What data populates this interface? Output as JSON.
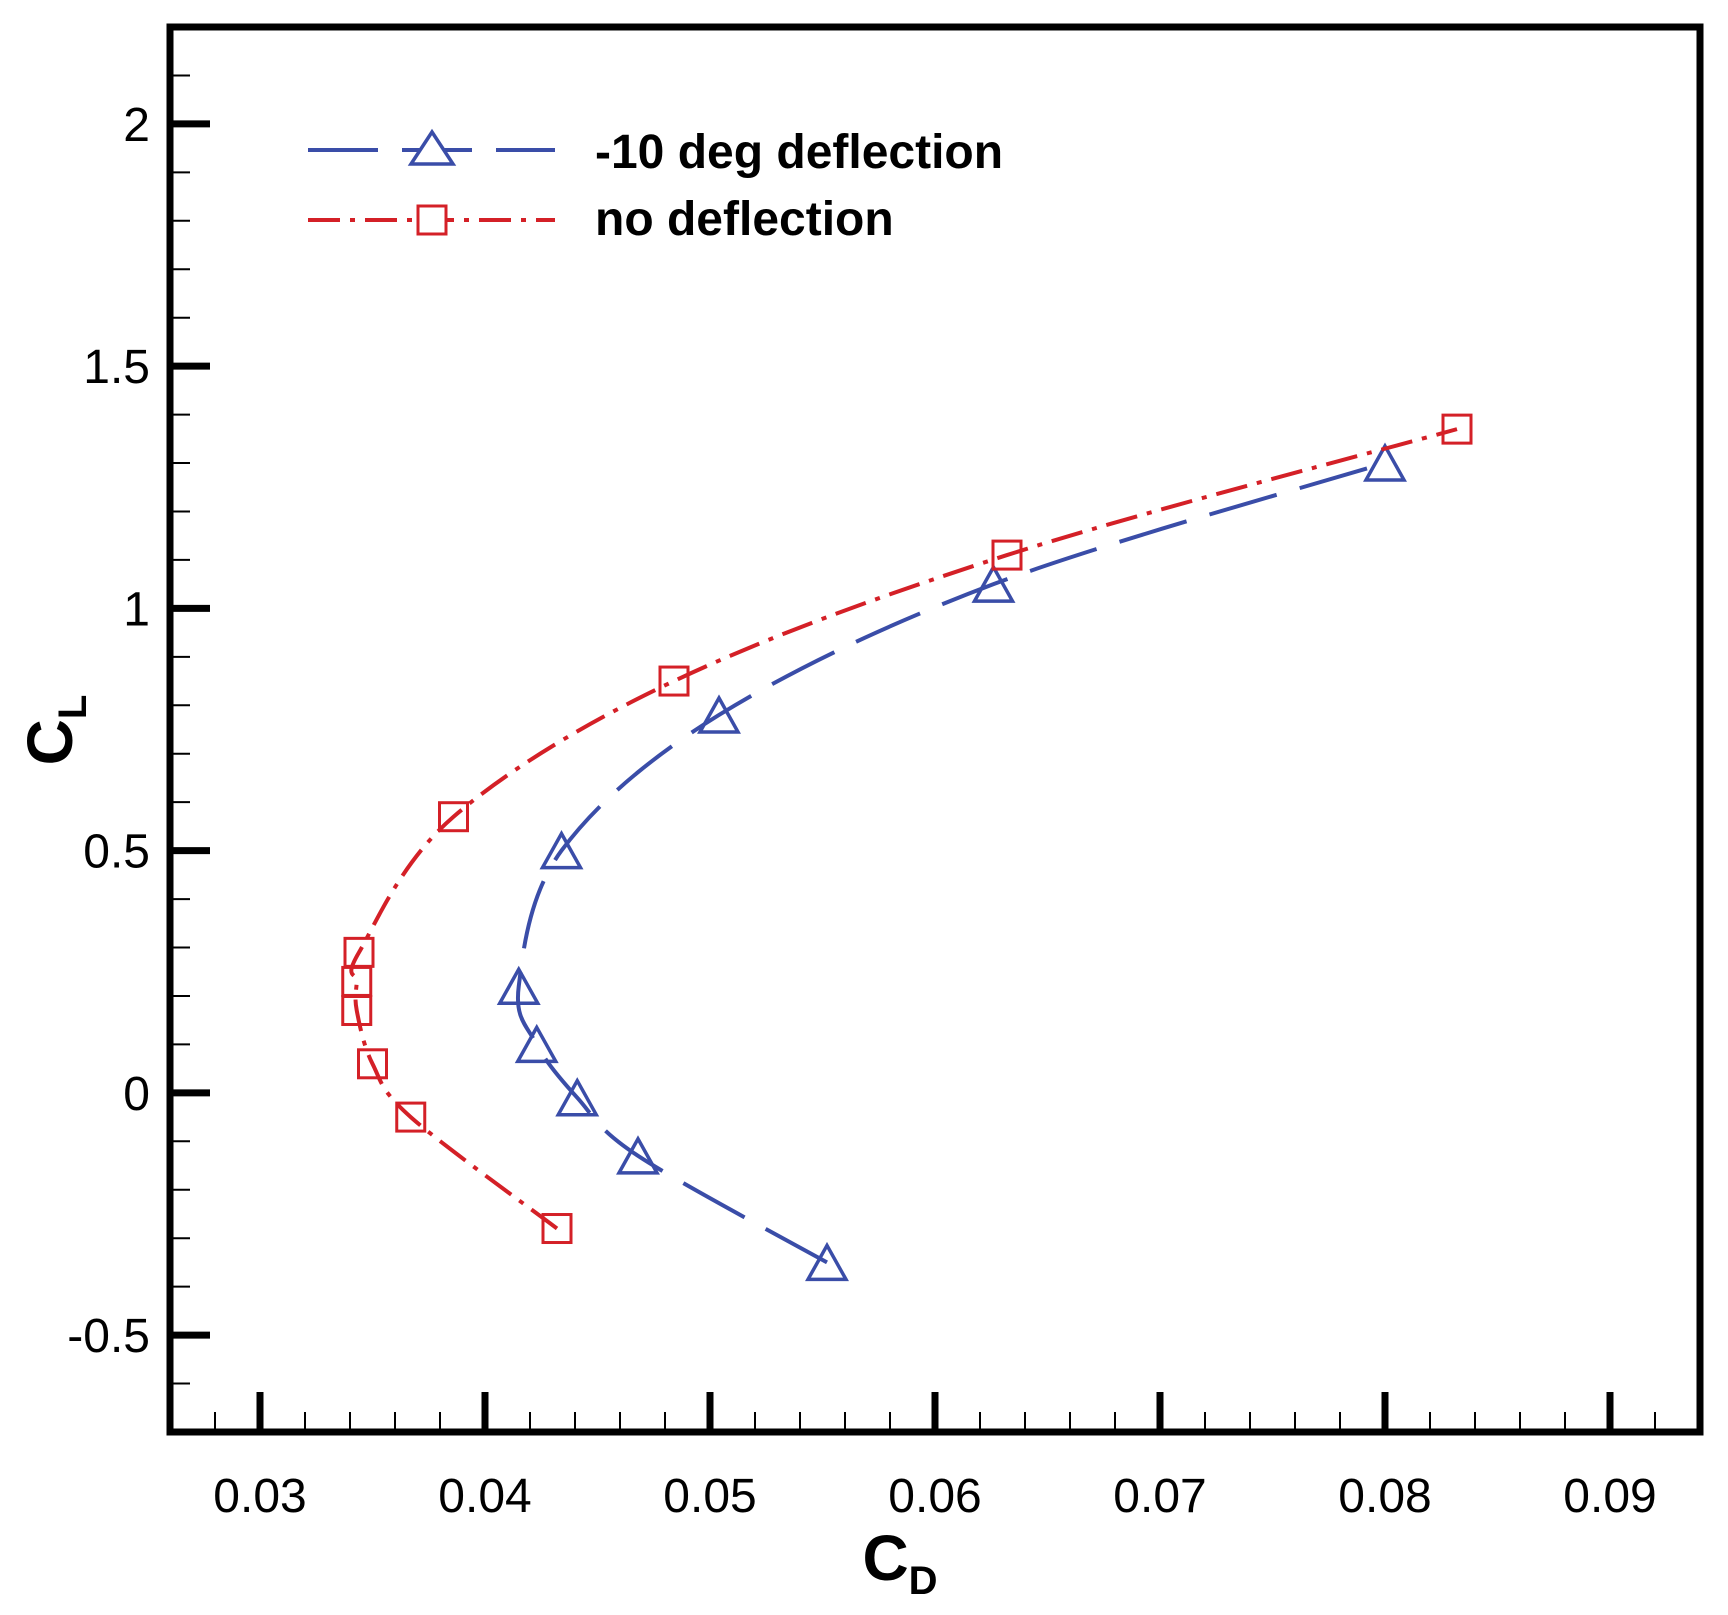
{
  "chart_data": {
    "type": "line",
    "title": "",
    "xlabel": {
      "main": "C",
      "sub": "D"
    },
    "ylabel": {
      "main": "C",
      "sub": "L"
    },
    "xlim": [
      0.026,
      0.094
    ],
    "ylim": [
      -0.7,
      2.2
    ],
    "xticks": [
      0.03,
      0.04,
      0.05,
      0.06,
      0.07,
      0.08,
      0.09
    ],
    "xtick_labels": [
      "0.03",
      "0.04",
      "0.05",
      "0.06",
      "0.07",
      "0.08",
      "0.09"
    ],
    "yticks": [
      -0.5,
      0,
      0.5,
      1,
      1.5,
      2
    ],
    "ytick_labels": [
      "-0.5",
      "0",
      "0.5",
      "1",
      "1.5",
      "2"
    ],
    "grid": false,
    "legend_position": "top-left",
    "series": [
      {
        "name": "-10 deg deflection",
        "color": "#3a4da8",
        "marker": "triangle",
        "line_style": "long-dash",
        "points": [
          [
            0.0552,
            -0.35
          ],
          [
            0.0468,
            -0.13
          ],
          [
            0.0441,
            -0.01
          ],
          [
            0.0423,
            0.1
          ],
          [
            0.0415,
            0.22
          ],
          [
            0.0434,
            0.5
          ],
          [
            0.0504,
            0.78
          ],
          [
            0.0626,
            1.05
          ],
          [
            0.08,
            1.3
          ]
        ]
      },
      {
        "name": "no deflection",
        "color": "#d42027",
        "marker": "square",
        "line_style": "dash-dot",
        "points": [
          [
            0.0432,
            -0.28
          ],
          [
            0.0367,
            -0.05
          ],
          [
            0.035,
            0.06
          ],
          [
            0.0343,
            0.17
          ],
          [
            0.0343,
            0.23
          ],
          [
            0.0344,
            0.29
          ],
          [
            0.0386,
            0.57
          ],
          [
            0.0484,
            0.85
          ],
          [
            0.0632,
            1.11
          ],
          [
            0.0832,
            1.37
          ]
        ]
      }
    ]
  }
}
